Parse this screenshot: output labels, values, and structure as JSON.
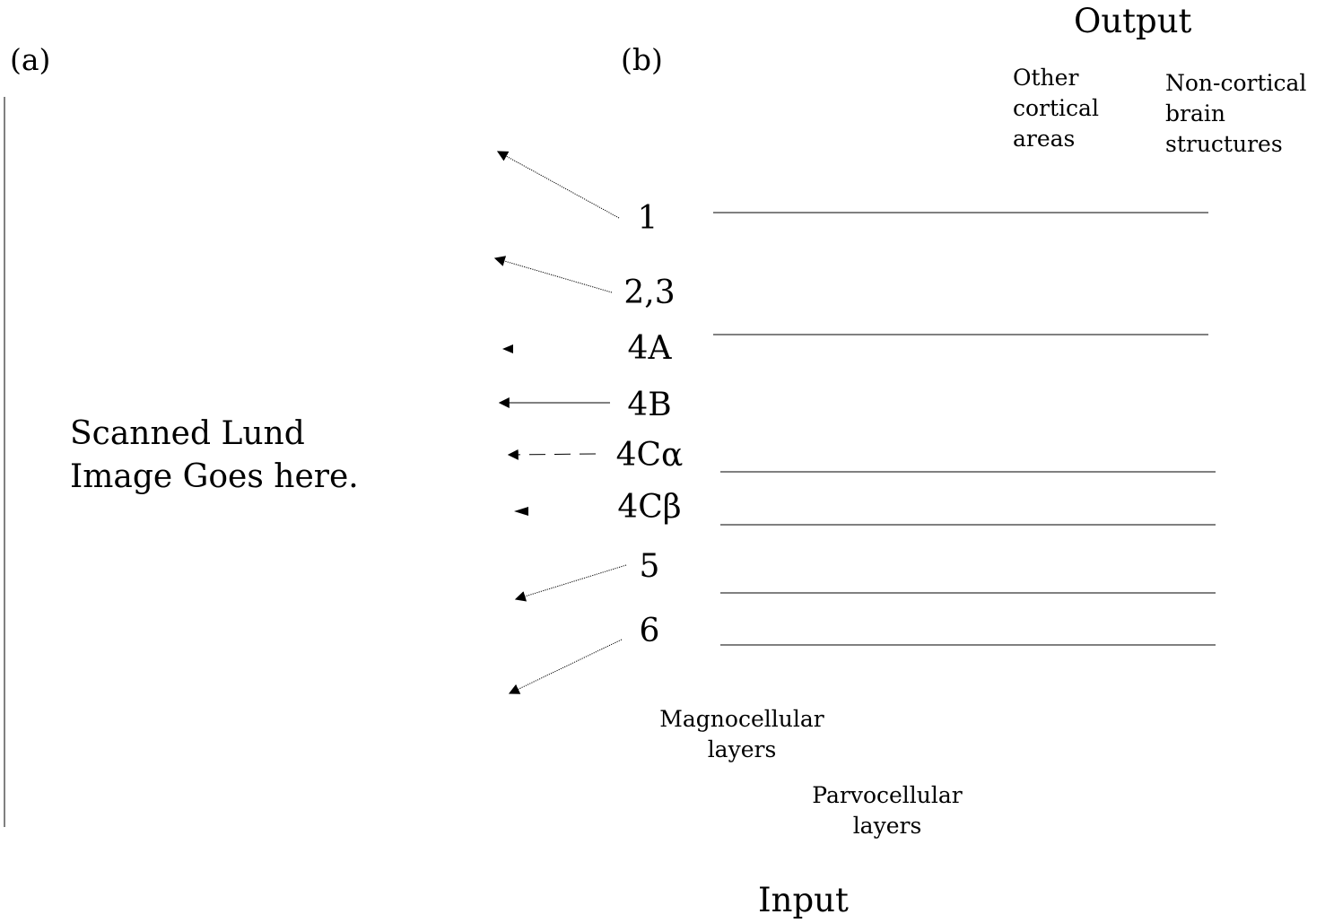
{
  "panel_a_label": "(a)",
  "panel_b_label": "(b)",
  "output_label": "Output",
  "input_label": "Input",
  "placeholder_text": "Scanned Lund\nImage Goes here.",
  "other_cortical_label": "Other\ncortical\nareas",
  "non_cortical_label": "Non-cortical\nbrain\nstructures",
  "magnocellular_label": "Magnocellular\nlayers",
  "parvocellular_label": "Parvocellular\nlayers",
  "layers": [
    "1",
    "2,3",
    "4A",
    "4B",
    "4Cα",
    "4Cβ",
    "5",
    "6"
  ],
  "colors": {
    "ink": "#000000",
    "background": "#ffffff"
  }
}
